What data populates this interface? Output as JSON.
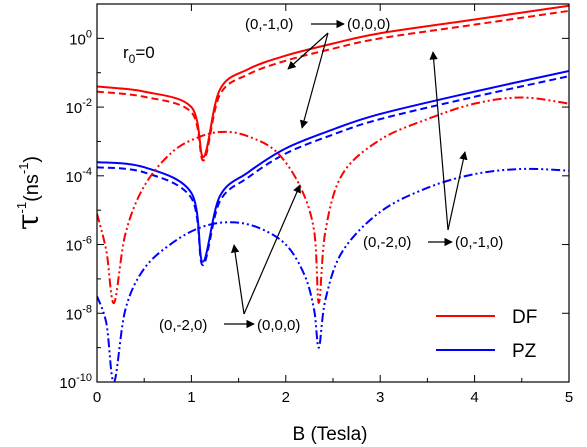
{
  "chart_data": {
    "type": "line",
    "xlabel": "B (Tesla)",
    "ylabel_main": "τ",
    "ylabel_sup": "-1",
    "ylabel_paren": "(ns",
    "ylabel_paren_sup": "-1",
    "ylabel_close": ")",
    "xlim": [
      0,
      5
    ],
    "ylim": [
      1e-10,
      10
    ],
    "yscale": "log",
    "x_ticks": [
      {
        "v": 0,
        "label": "0"
      },
      {
        "v": 1,
        "label": "1"
      },
      {
        "v": 2,
        "label": "2"
      },
      {
        "v": 3,
        "label": "3"
      },
      {
        "v": 4,
        "label": "4"
      },
      {
        "v": 5,
        "label": "5"
      }
    ],
    "y_ticks": [
      {
        "exp": -10,
        "base": "10",
        "sup": "-10"
      },
      {
        "exp": -8,
        "base": "10",
        "sup": "-8"
      },
      {
        "exp": -6,
        "base": "10",
        "sup": "-6"
      },
      {
        "exp": -4,
        "base": "10",
        "sup": "-4"
      },
      {
        "exp": -2,
        "base": "10",
        "sup": "-2"
      },
      {
        "exp": 0,
        "base": "10",
        "sup": "0"
      }
    ],
    "r0_label": {
      "main": "r",
      "sub": "0",
      "rest": "=0"
    },
    "legend": [
      {
        "label": "DF",
        "color": "#ff0000"
      },
      {
        "label": "PZ",
        "color": "#0000ff"
      }
    ],
    "annotations": {
      "a1": {
        "from": "(0,-1,0)",
        "to": "(0,0,0)"
      },
      "a2": {
        "from": "(0,-2,0)",
        "to": "(0,-1,0)"
      },
      "a3": {
        "from": "(0,-2,0)",
        "to": "(0,0,0)"
      }
    },
    "series": [
      {
        "color": "#ff0000",
        "dash": "solid",
        "min_x": 1.13,
        "min_log": -3.45,
        "points": [
          [
            0,
            -1.4
          ],
          [
            0.5,
            -1.55
          ],
          [
            1.0,
            -2.0
          ],
          [
            1.13,
            -3.45
          ],
          [
            1.3,
            -1.5
          ],
          [
            1.6,
            -0.9
          ],
          [
            2.0,
            -0.5
          ],
          [
            2.5,
            -0.15
          ],
          [
            3.0,
            0.15
          ],
          [
            4.0,
            0.55
          ],
          [
            5.0,
            0.95
          ]
        ]
      },
      {
        "color": "#ff0000",
        "dash": "dash",
        "min_x": 1.13,
        "min_log": -3.55,
        "points": [
          [
            0,
            -1.55
          ],
          [
            0.5,
            -1.7
          ],
          [
            1.0,
            -2.15
          ],
          [
            1.13,
            -3.55
          ],
          [
            1.3,
            -1.65
          ],
          [
            1.6,
            -1.05
          ],
          [
            2.0,
            -0.65
          ],
          [
            2.5,
            -0.3
          ],
          [
            3.0,
            0.0
          ],
          [
            4.0,
            0.4
          ],
          [
            5.0,
            0.8
          ]
        ]
      },
      {
        "color": "#0000ff",
        "dash": "solid",
        "min_x": 1.12,
        "min_log": -6.5,
        "points": [
          [
            0,
            -3.6
          ],
          [
            0.5,
            -3.75
          ],
          [
            1.0,
            -4.5
          ],
          [
            1.12,
            -6.5
          ],
          [
            1.3,
            -4.6
          ],
          [
            1.6,
            -3.9
          ],
          [
            2.0,
            -3.2
          ],
          [
            2.5,
            -2.65
          ],
          [
            3.0,
            -2.2
          ],
          [
            4.0,
            -1.55
          ],
          [
            5.0,
            -0.95
          ]
        ]
      },
      {
        "color": "#0000ff",
        "dash": "dash",
        "min_x": 1.12,
        "min_log": -6.6,
        "points": [
          [
            0,
            -3.75
          ],
          [
            0.5,
            -3.9
          ],
          [
            1.0,
            -4.65
          ],
          [
            1.12,
            -6.6
          ],
          [
            1.3,
            -4.75
          ],
          [
            1.6,
            -4.05
          ],
          [
            2.0,
            -3.35
          ],
          [
            2.5,
            -2.8
          ],
          [
            3.0,
            -2.35
          ],
          [
            4.0,
            -1.7
          ],
          [
            5.0,
            -1.1
          ]
        ]
      },
      {
        "color": "#ff0000",
        "dash": "dashdot",
        "points": [
          [
            0,
            -5.1
          ],
          [
            0.1,
            -6.2
          ],
          [
            0.18,
            -7.7
          ],
          [
            0.3,
            -5.7
          ],
          [
            0.5,
            -4.3
          ],
          [
            0.8,
            -3.3
          ],
          [
            1.1,
            -2.85
          ],
          [
            1.35,
            -2.72
          ],
          [
            1.6,
            -2.85
          ],
          [
            1.9,
            -3.3
          ],
          [
            2.15,
            -4.3
          ],
          [
            2.3,
            -5.6
          ],
          [
            2.35,
            -7.7
          ],
          [
            2.42,
            -5.6
          ],
          [
            2.6,
            -3.95
          ],
          [
            3.0,
            -2.95
          ],
          [
            3.5,
            -2.35
          ],
          [
            4.0,
            -1.9
          ],
          [
            4.5,
            -1.72
          ],
          [
            5.0,
            -1.9
          ]
        ]
      },
      {
        "color": "#0000ff",
        "dash": "dashdot",
        "points": [
          [
            0,
            -7.5
          ],
          [
            0.1,
            -8.3
          ],
          [
            0.18,
            -10.0
          ],
          [
            0.3,
            -7.9
          ],
          [
            0.5,
            -6.7
          ],
          [
            0.8,
            -5.95
          ],
          [
            1.1,
            -5.5
          ],
          [
            1.4,
            -5.35
          ],
          [
            1.7,
            -5.5
          ],
          [
            2.0,
            -6.0
          ],
          [
            2.2,
            -6.9
          ],
          [
            2.3,
            -7.9
          ],
          [
            2.35,
            -9.0
          ],
          [
            2.42,
            -7.6
          ],
          [
            2.6,
            -6.2
          ],
          [
            3.0,
            -5.05
          ],
          [
            3.5,
            -4.35
          ],
          [
            4.0,
            -3.95
          ],
          [
            4.5,
            -3.8
          ],
          [
            5.0,
            -3.85
          ]
        ]
      }
    ]
  }
}
